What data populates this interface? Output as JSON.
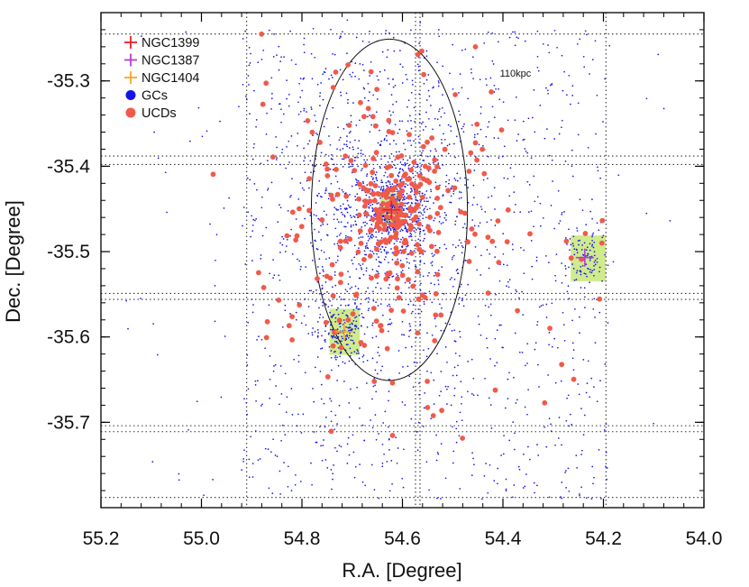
{
  "chart_data": {
    "type": "scatter",
    "title": "",
    "xlabel": "R.A. [Degree]",
    "ylabel": "Dec. [Degree]",
    "xlim": [
      55.2,
      54.0
    ],
    "ylim": [
      -35.8,
      -35.22
    ],
    "x_ticks": [
      55.2,
      55.0,
      54.8,
      54.6,
      54.4,
      54.2,
      54.0
    ],
    "x_tick_labels": [
      "55.2",
      "55.0",
      "54.8",
      "54.6",
      "54.4",
      "54.2",
      "54.0"
    ],
    "y_ticks": [
      -35.3,
      -35.4,
      -35.5,
      -35.6,
      -35.7
    ],
    "y_tick_labels": [
      "-35.3",
      "-35.4",
      "-35.5",
      "-35.6",
      "-35.7"
    ],
    "grid": false,
    "legend": {
      "placement": "top-left",
      "entries": [
        {
          "label": "NGC1399",
          "marker": "plus",
          "color": "#e8202a"
        },
        {
          "label": "NGC1387",
          "marker": "plus",
          "color": "#b43fd6"
        },
        {
          "label": "NGC1404",
          "marker": "plus",
          "color": "#f5a623"
        },
        {
          "label": "GCs",
          "marker": "circle",
          "color": "#1414e6"
        },
        {
          "label": "UCDs",
          "marker": "circle",
          "color": "#f05a4a"
        }
      ]
    },
    "annotations": [
      {
        "text": "110kpc",
        "x": 54.375,
        "y": -35.295
      }
    ],
    "circle": {
      "label": "110kpc",
      "center_x": 54.626,
      "center_y": -35.451,
      "radius_deg": 0.2
    },
    "galaxies": [
      {
        "name": "NGC1399",
        "x": 54.622,
        "y": -35.451,
        "color": "#e8202a"
      },
      {
        "name": "NGC1387",
        "x": 54.237,
        "y": -35.507,
        "color": "#b43fd6"
      },
      {
        "name": "NGC1404",
        "x": 54.716,
        "y": -35.594,
        "color": "#f5a623"
      }
    ],
    "highlight_boxes": [
      {
        "name": "NGC1399",
        "x_range": [
          54.6445,
          54.6035
        ],
        "y_range": [
          -35.471,
          -35.431
        ],
        "color": "#c8e878"
      },
      {
        "name": "NGC1387",
        "x_range": [
          54.265,
          54.195
        ],
        "y_range": [
          -35.535,
          -35.481
        ],
        "color": "#c8e878"
      },
      {
        "name": "NGC1404",
        "x_range": [
          54.745,
          54.685
        ],
        "y_range": [
          -35.621,
          -35.567
        ],
        "color": "#c8e878"
      }
    ],
    "grid_lines": {
      "ra": [
        54.91,
        54.574,
        54.565,
        54.195
      ],
      "dec": [
        -35.245,
        -35.388,
        -35.398,
        -35.549,
        -35.556,
        -35.704,
        -35.711,
        -35.788
      ]
    },
    "series": [
      {
        "name": "GCs",
        "color": "#1414e6",
        "count": 2600,
        "distribution": "concentrated on NGC1399 with sub-concentrations around NGC1404 and NGC1387, plus diffuse field"
      },
      {
        "name": "UCDs",
        "color": "#f05a4a",
        "count": 330,
        "distribution": "concentrated on NGC1399 within ~0.2 deg, sparse outskirts"
      }
    ]
  }
}
